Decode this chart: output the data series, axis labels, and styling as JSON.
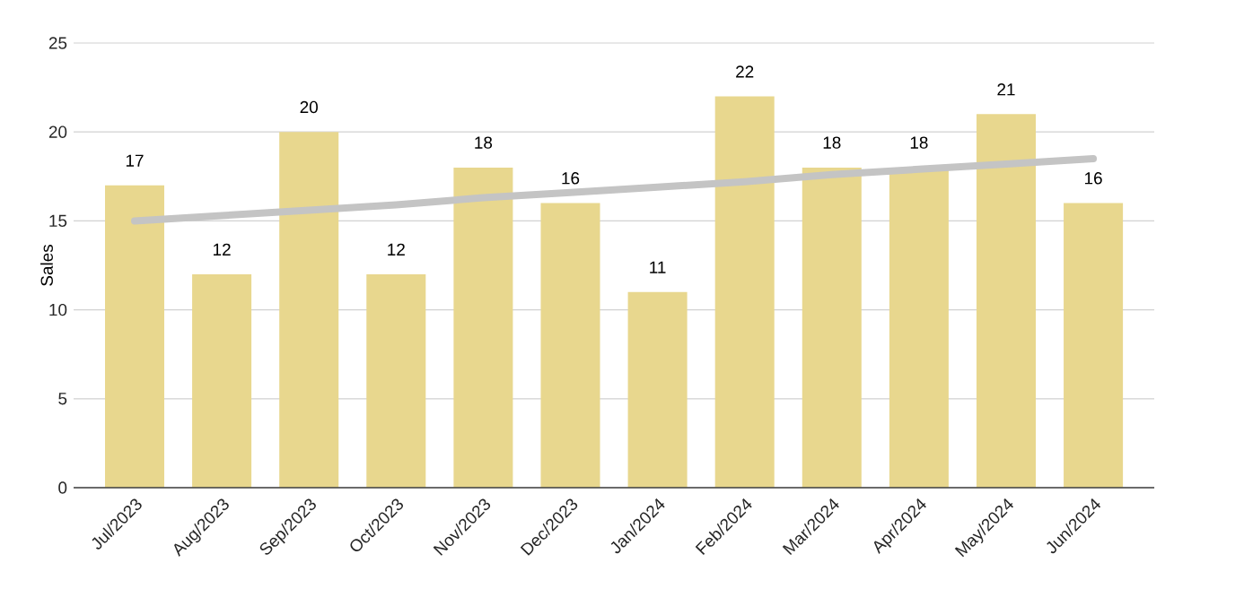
{
  "chart_data": {
    "type": "bar",
    "ylabel": "Sales",
    "categories": [
      "Jul/2023",
      "Aug/2023",
      "Sep/2023",
      "Oct/2023",
      "Nov/2023",
      "Dec/2023",
      "Jan/2024",
      "Feb/2024",
      "Mar/2024",
      "Apr/2024",
      "May/2024",
      "Jun/2024"
    ],
    "series": [
      {
        "color": "#e8d78e",
        "values": [
          17,
          12,
          20,
          12,
          18,
          16,
          11,
          22,
          18,
          18,
          21,
          16
        ],
        "value_labels": [
          "17",
          "12",
          "20",
          "12",
          "18",
          "16",
          "11",
          "22",
          "18",
          "18",
          "21",
          "16"
        ]
      },
      {
        "type": "line",
        "color": "#c4c4c4",
        "values": [
          15.0,
          15.3,
          15.6,
          15.9,
          16.3,
          16.6,
          16.9,
          17.2,
          17.6,
          17.9,
          18.2,
          18.5
        ]
      }
    ],
    "ylim": [
      0,
      25
    ],
    "yticks": [
      0,
      5,
      10,
      15,
      20,
      25
    ],
    "grid": "y"
  }
}
